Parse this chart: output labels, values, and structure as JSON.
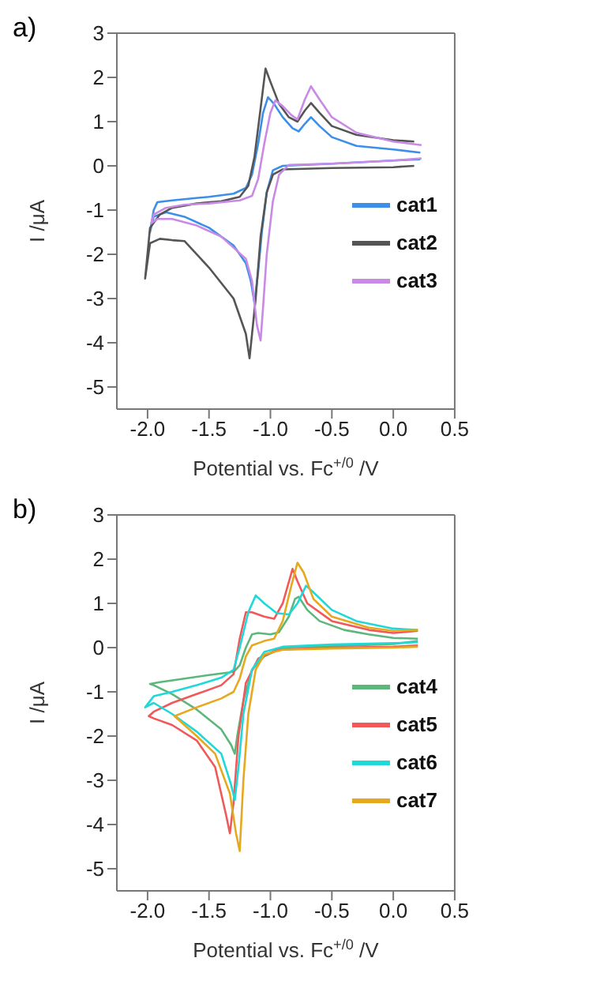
{
  "chart_data": [
    {
      "type": "line",
      "title": "a)",
      "xlabel": "Potential vs. Fc$^{+/0}$ /V",
      "ylabel": "I /μA",
      "xlim": [
        -2.25,
        0.5
      ],
      "ylim": [
        -5.5,
        3
      ],
      "xticks": [
        {
          "value": -2,
          "label": "-2.0"
        },
        {
          "value": -1.5,
          "label": "-1.5"
        },
        {
          "value": -1,
          "label": "-1.0"
        },
        {
          "value": -0.5,
          "label": "-0.5"
        },
        {
          "value": 0,
          "label": "0.0"
        },
        {
          "value": 0.5,
          "label": "0.5"
        }
      ],
      "yticks": [
        -5,
        -4,
        -3,
        -2,
        -1,
        0,
        1,
        2,
        3
      ],
      "grid": false,
      "legend": "right",
      "marker": "none",
      "line_style": "solid",
      "series": [
        {
          "name": "cat1",
          "color": "#3b8fe8",
          "x": [
            0.22,
            0,
            -0.5,
            -0.9,
            -0.98,
            -1.03,
            -1.07,
            -1.1,
            -1.13,
            -1.16,
            -1.2,
            -1.3,
            -1.5,
            -1.7,
            -1.85,
            -1.95,
            -1.98,
            -1.95,
            -1.92,
            -1.8,
            -1.5,
            -1.3,
            -1.2,
            -1.15,
            -1.1,
            -1.06,
            -1.02,
            -0.97,
            -0.9,
            -0.82,
            -0.77,
            -0.72,
            -0.67,
            -0.6,
            -0.5,
            -0.3,
            0,
            0.22
          ],
          "values": [
            0.15,
            0.12,
            0.05,
            0,
            -0.1,
            -0.6,
            -1.5,
            -2.4,
            -3.1,
            -2.6,
            -2.2,
            -1.8,
            -1.4,
            -1.15,
            -1.05,
            -1.15,
            -1.5,
            -1,
            -0.82,
            -0.78,
            -0.7,
            -0.63,
            -0.5,
            -0.2,
            0.5,
            1.2,
            1.55,
            1.4,
            1.1,
            0.85,
            0.78,
            0.95,
            1.1,
            0.9,
            0.65,
            0.45,
            0.37,
            0.3
          ]
        },
        {
          "name": "cat2",
          "color": "#555555",
          "x": [
            0.17,
            0,
            -0.5,
            -0.9,
            -0.98,
            -1.03,
            -1.08,
            -1.12,
            -1.17,
            -1.2,
            -1.3,
            -1.5,
            -1.7,
            -1.8,
            -1.9,
            -1.98,
            -2.02,
            -1.98,
            -1.9,
            -1.8,
            -1.6,
            -1.4,
            -1.25,
            -1.18,
            -1.13,
            -1.08,
            -1.04,
            -1,
            -0.93,
            -0.85,
            -0.78,
            -0.72,
            -0.67,
            -0.6,
            -0.5,
            -0.3,
            0,
            0.17
          ],
          "values": [
            0,
            -0.03,
            -0.05,
            -0.08,
            -0.2,
            -0.6,
            -1.6,
            -3,
            -4.35,
            -3.8,
            -3,
            -2.3,
            -1.7,
            -1.68,
            -1.65,
            -1.75,
            -2.55,
            -1.4,
            -1.1,
            -0.95,
            -0.85,
            -0.8,
            -0.7,
            -0.45,
            0.2,
            1.3,
            2.2,
            1.9,
            1.4,
            1.1,
            1,
            1.25,
            1.42,
            1.2,
            0.9,
            0.7,
            0.58,
            0.55
          ]
        },
        {
          "name": "cat3",
          "color": "#c98ae6",
          "x": [
            0.23,
            0,
            -0.5,
            -0.85,
            -0.93,
            -0.98,
            -1.03,
            -1.06,
            -1.08,
            -1.11,
            -1.15,
            -1.2,
            -1.4,
            -1.6,
            -1.8,
            -1.92,
            -1.97,
            -1.95,
            -1.85,
            -1.7,
            -1.5,
            -1.25,
            -1.15,
            -1.1,
            -1.05,
            -1,
            -0.96,
            -0.9,
            -0.83,
            -0.78,
            -0.72,
            -0.67,
            -0.6,
            -0.5,
            -0.3,
            0,
            0.23
          ],
          "values": [
            0.17,
            0.12,
            0.05,
            0.02,
            -0.2,
            -0.8,
            -2,
            -3.2,
            -3.95,
            -3.6,
            -2.6,
            -2.1,
            -1.6,
            -1.35,
            -1.2,
            -1.2,
            -1.3,
            -1.1,
            -0.95,
            -0.88,
            -0.85,
            -0.78,
            -0.68,
            -0.3,
            0.5,
            1.2,
            1.48,
            1.35,
            1.15,
            1.05,
            1.5,
            1.8,
            1.5,
            1.1,
            0.75,
            0.55,
            0.47
          ]
        }
      ]
    },
    {
      "type": "line",
      "title": "b)",
      "xlabel": "Potential vs. Fc$^{+/0}$ /V",
      "ylabel": "I /μA",
      "xlim": [
        -2.25,
        0.5
      ],
      "ylim": [
        -5.5,
        3
      ],
      "xticks": [
        {
          "value": -2,
          "label": "-2.0"
        },
        {
          "value": -1.5,
          "label": "-1.5"
        },
        {
          "value": -1,
          "label": "-1.0"
        },
        {
          "value": -0.5,
          "label": "-0.5"
        },
        {
          "value": 0,
          "label": "0.0"
        },
        {
          "value": 0.5,
          "label": "0.5"
        }
      ],
      "yticks": [
        -5,
        -4,
        -3,
        -2,
        -1,
        0,
        1,
        2,
        3
      ],
      "grid": false,
      "legend": "right",
      "marker": "none",
      "line_style": "solid",
      "series": [
        {
          "name": "cat4",
          "color": "#5cb87a",
          "x": [
            0.2,
            0,
            -0.5,
            -0.9,
            -1.05,
            -1.15,
            -1.22,
            -1.27,
            -1.29,
            -1.32,
            -1.4,
            -1.6,
            -1.8,
            -1.95,
            -1.98,
            -1.9,
            -1.7,
            -1.5,
            -1.3,
            -1.25,
            -1.2,
            -1.15,
            -1.1,
            -1,
            -0.93,
            -0.85,
            -0.8,
            -0.77,
            -0.7,
            -0.6,
            -0.4,
            -0.2,
            0,
            0.2
          ],
          "values": [
            0.15,
            0.08,
            0.03,
            0,
            -0.2,
            -0.5,
            -1.2,
            -2,
            -2.4,
            -2.2,
            -1.85,
            -1.4,
            -1.05,
            -0.85,
            -0.82,
            -0.78,
            -0.7,
            -0.62,
            -0.55,
            -0.4,
            0,
            0.3,
            0.33,
            0.3,
            0.35,
            0.7,
            1.1,
            1.15,
            0.85,
            0.6,
            0.4,
            0.3,
            0.22,
            0.2
          ]
        },
        {
          "name": "cat5",
          "color": "#f0585a",
          "x": [
            0.2,
            0,
            -0.5,
            -0.95,
            -1.1,
            -1.2,
            -1.26,
            -1.3,
            -1.33,
            -1.36,
            -1.45,
            -1.6,
            -1.8,
            -1.95,
            -1.99,
            -1.95,
            -1.8,
            -1.6,
            -1.4,
            -1.3,
            -1.25,
            -1.2,
            -1.15,
            -1.05,
            -0.97,
            -0.9,
            -0.82,
            -0.78,
            -0.7,
            -0.5,
            -0.2,
            0,
            0.2
          ],
          "values": [
            0.05,
            0.02,
            0,
            -0.05,
            -0.25,
            -0.8,
            -2,
            -3.5,
            -4.2,
            -3.8,
            -2.7,
            -2.1,
            -1.75,
            -1.6,
            -1.55,
            -1.45,
            -1.25,
            -1.05,
            -0.85,
            -0.6,
            0.2,
            0.8,
            0.8,
            0.7,
            0.65,
            1,
            1.78,
            1.5,
            1,
            0.6,
            0.4,
            0.33,
            0.38
          ]
        },
        {
          "name": "cat6",
          "color": "#1fd8d8",
          "x": [
            0.2,
            0,
            -0.5,
            -0.9,
            -1.05,
            -1.15,
            -1.22,
            -1.26,
            -1.29,
            -1.32,
            -1.4,
            -1.6,
            -1.8,
            -1.95,
            -2.02,
            -1.95,
            -1.8,
            -1.6,
            -1.4,
            -1.3,
            -1.25,
            -1.18,
            -1.12,
            -1.05,
            -0.95,
            -0.85,
            -0.78,
            -0.71,
            -0.65,
            -0.5,
            -0.3,
            0,
            0.2
          ],
          "values": [
            0.12,
            0.1,
            0.07,
            0.02,
            -0.1,
            -0.5,
            -1.5,
            -2.7,
            -3.45,
            -3.1,
            -2.4,
            -1.9,
            -1.5,
            -1.25,
            -1.35,
            -1.1,
            -1,
            -0.85,
            -0.68,
            -0.5,
            0,
            0.8,
            1.18,
            1,
            0.78,
            0.75,
            1,
            1.4,
            1.25,
            0.85,
            0.6,
            0.43,
            0.4
          ]
        },
        {
          "name": "cat7",
          "color": "#e6a91e",
          "x": [
            0.2,
            0,
            -0.5,
            -0.9,
            -1.05,
            -1.12,
            -1.18,
            -1.22,
            -1.25,
            -1.28,
            -1.33,
            -1.45,
            -1.6,
            -1.7,
            -1.78,
            -1.6,
            -1.4,
            -1.3,
            -1.25,
            -1.2,
            -1.15,
            -1.05,
            -0.97,
            -0.9,
            -0.83,
            -0.78,
            -0.73,
            -0.65,
            -0.5,
            -0.2,
            0,
            0.2
          ],
          "values": [
            0.02,
            0,
            -0.02,
            -0.05,
            -0.15,
            -0.5,
            -1.5,
            -3,
            -4.6,
            -4.2,
            -3.3,
            -2.4,
            -2,
            -1.75,
            -1.55,
            -1.35,
            -1.15,
            -1,
            -0.7,
            -0.2,
            0.05,
            0.15,
            0.2,
            0.6,
            1.4,
            1.92,
            1.7,
            1.1,
            0.7,
            0.45,
            0.38,
            0.4
          ]
        }
      ]
    }
  ]
}
